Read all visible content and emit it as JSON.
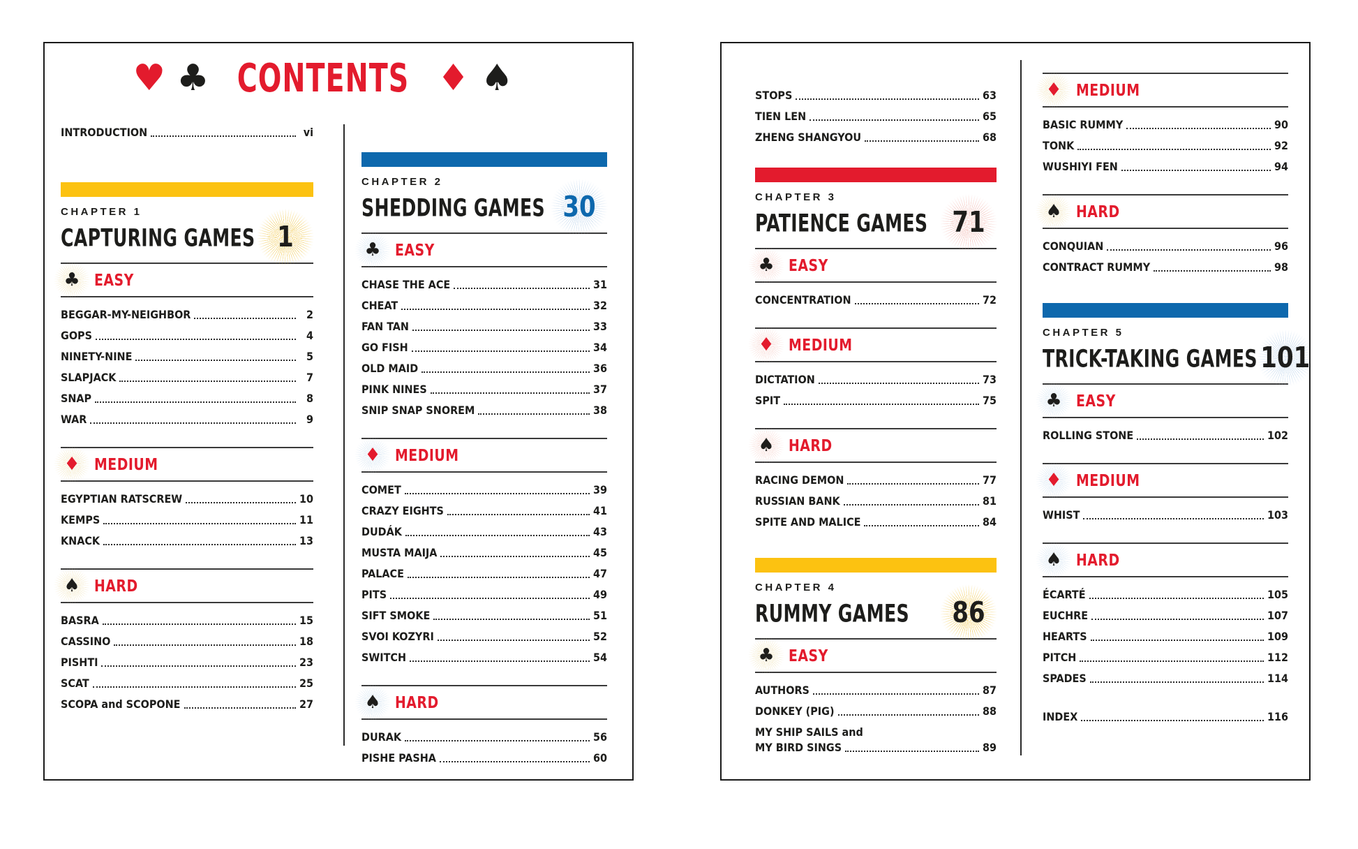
{
  "masthead": {
    "title": "CONTENTS",
    "suits": [
      "heart",
      "club",
      "diamond",
      "spade"
    ]
  },
  "colors": {
    "red": "#e31b2d",
    "blue": "#0d68ad",
    "yellow": "#fcc211",
    "ink": "#1d1d1b",
    "burst_yellow": "#f0c441",
    "burst_blue": "#b9d2ea",
    "burst_red": "#f2b4ad",
    "glow_yellow": "#f0e2b4",
    "glow_blue": "#cfe1f0",
    "glow_red": "#f6cfc8"
  },
  "pages": [
    {
      "name": "left",
      "columns": [
        {
          "blocks": [
            {
              "type": "entry",
              "label": "INTRODUCTION",
              "page": "vi"
            },
            {
              "type": "chapter",
              "kicker": "CHAPTER 1",
              "title": "CAPTURING GAMES",
              "page": "1",
              "theme": "yellow",
              "number_color": "#1d1d1b"
            },
            {
              "type": "section",
              "suit": "club",
              "label": "EASY",
              "theme": "yellow",
              "items": [
                {
                  "label": "BEGGAR-MY-NEIGHBOR",
                  "page": "2"
                },
                {
                  "label": "GOPS",
                  "page": "4"
                },
                {
                  "label": "NINETY-NINE",
                  "page": "5"
                },
                {
                  "label": "SLAPJACK",
                  "page": "7"
                },
                {
                  "label": "SNAP",
                  "page": "8"
                },
                {
                  "label": "WAR",
                  "page": "9"
                }
              ]
            },
            {
              "type": "section",
              "suit": "diamond",
              "label": "MEDIUM",
              "theme": "yellow",
              "items": [
                {
                  "label": "EGYPTIAN RATSCREW",
                  "page": "10"
                },
                {
                  "label": "KEMPS",
                  "page": "11"
                },
                {
                  "label": "KNACK",
                  "page": "13"
                }
              ]
            },
            {
              "type": "section",
              "suit": "spade",
              "label": "HARD",
              "theme": "yellow",
              "items": [
                {
                  "label": "BASRA",
                  "page": "15"
                },
                {
                  "label": "CASSINO",
                  "page": "18"
                },
                {
                  "label": "PISHTI",
                  "page": "23"
                },
                {
                  "label": "SCAT",
                  "page": "25"
                },
                {
                  "label": "SCOPA and SCOPONE",
                  "page": "27"
                }
              ]
            }
          ]
        },
        {
          "blocks": [
            {
              "type": "chapter",
              "kicker": "CHAPTER 2",
              "title": "SHEDDING GAMES",
              "page": "30",
              "theme": "blue",
              "number_color": "#0d68ad"
            },
            {
              "type": "section",
              "suit": "club",
              "label": "EASY",
              "theme": "blue",
              "items": [
                {
                  "label": "CHASE THE ACE",
                  "page": "31"
                },
                {
                  "label": "CHEAT",
                  "page": "32"
                },
                {
                  "label": "FAN TAN",
                  "page": "33"
                },
                {
                  "label": "GO FISH",
                  "page": "34"
                },
                {
                  "label": "OLD MAID",
                  "page": "36"
                },
                {
                  "label": "PINK NINES",
                  "page": "37"
                },
                {
                  "label": "SNIP SNAP SNOREM",
                  "page": "38"
                }
              ]
            },
            {
              "type": "section",
              "suit": "diamond",
              "label": "MEDIUM",
              "theme": "blue",
              "items": [
                {
                  "label": "COMET",
                  "page": "39"
                },
                {
                  "label": "CRAZY EIGHTS",
                  "page": "41"
                },
                {
                  "label": "DUDÁK",
                  "page": "43"
                },
                {
                  "label": "MUSTA MAIJA",
                  "page": "45"
                },
                {
                  "label": "PALACE",
                  "page": "47"
                },
                {
                  "label": "PITS",
                  "page": "49"
                },
                {
                  "label": "SIFT SMOKE",
                  "page": "51"
                },
                {
                  "label": "SVOI KOZYRI",
                  "page": "52"
                },
                {
                  "label": "SWITCH",
                  "page": "54"
                }
              ]
            },
            {
              "type": "section",
              "suit": "spade",
              "label": "HARD",
              "theme": "blue",
              "items": [
                {
                  "label": "DURAK",
                  "page": "56"
                },
                {
                  "label": "PISHE PASHA",
                  "page": "60"
                }
              ]
            }
          ]
        }
      ]
    },
    {
      "name": "right",
      "columns": [
        {
          "blocks": [
            {
              "type": "items",
              "items": [
                {
                  "label": "STOPS",
                  "page": "63"
                },
                {
                  "label": "TIEN LEN",
                  "page": "65"
                },
                {
                  "label": "ZHENG SHANGYOU",
                  "page": "68"
                }
              ]
            },
            {
              "type": "chapter",
              "kicker": "CHAPTER 3",
              "title": "PATIENCE GAMES",
              "page": "71",
              "theme": "red",
              "number_color": "#1d1d1b"
            },
            {
              "type": "section",
              "suit": "club",
              "label": "EASY",
              "theme": "red",
              "items": [
                {
                  "label": "CONCENTRATION",
                  "page": "72"
                }
              ]
            },
            {
              "type": "section",
              "suit": "diamond",
              "label": "MEDIUM",
              "theme": "red",
              "items": [
                {
                  "label": "DICTATION",
                  "page": "73"
                },
                {
                  "label": "SPIT",
                  "page": "75"
                }
              ]
            },
            {
              "type": "section",
              "suit": "spade",
              "label": "HARD",
              "theme": "red",
              "items": [
                {
                  "label": "RACING DEMON",
                  "page": "77"
                },
                {
                  "label": "RUSSIAN BANK",
                  "page": "81"
                },
                {
                  "label": "SPITE AND MALICE",
                  "page": "84"
                }
              ]
            },
            {
              "type": "chapter",
              "kicker": "CHAPTER 4",
              "title": "RUMMY GAMES",
              "page": "86",
              "theme": "yellow",
              "number_color": "#1d1d1b"
            },
            {
              "type": "section",
              "suit": "club",
              "label": "EASY",
              "theme": "yellow",
              "items": [
                {
                  "label": "AUTHORS",
                  "page": "87"
                },
                {
                  "label": "DONKEY (PIG)",
                  "page": "88"
                },
                {
                  "label": "MY SHIP SAILS and",
                  "label2": "MY BIRD SINGS",
                  "page": "89"
                }
              ]
            }
          ]
        },
        {
          "blocks": [
            {
              "type": "section",
              "suit": "diamond",
              "label": "MEDIUM",
              "theme": "yellow",
              "items": [
                {
                  "label": "BASIC RUMMY",
                  "page": "90"
                },
                {
                  "label": "TONK",
                  "page": "92"
                },
                {
                  "label": "WUSHIYI FEN",
                  "page": "94"
                }
              ]
            },
            {
              "type": "section",
              "suit": "spade",
              "label": "HARD",
              "theme": "yellow",
              "items": [
                {
                  "label": "CONQUIAN",
                  "page": "96"
                },
                {
                  "label": "CONTRACT RUMMY",
                  "page": "98"
                }
              ]
            },
            {
              "type": "chapter",
              "kicker": "CHAPTER 5",
              "title": "TRICK-TAKING GAMES",
              "page": "101",
              "theme": "blue",
              "number_color": "#1d1d1b"
            },
            {
              "type": "section",
              "suit": "club",
              "label": "EASY",
              "theme": "blue",
              "items": [
                {
                  "label": "ROLLING STONE",
                  "page": "102"
                }
              ]
            },
            {
              "type": "section",
              "suit": "diamond",
              "label": "MEDIUM",
              "theme": "blue",
              "items": [
                {
                  "label": "WHIST",
                  "page": "103"
                }
              ]
            },
            {
              "type": "section",
              "suit": "spade",
              "label": "HARD",
              "theme": "blue",
              "items": [
                {
                  "label": "ÉCARTÉ",
                  "page": "105"
                },
                {
                  "label": "EUCHRE",
                  "page": "107"
                },
                {
                  "label": "HEARTS",
                  "page": "109"
                },
                {
                  "label": "PITCH",
                  "page": "112"
                },
                {
                  "label": "SPADES",
                  "page": "114"
                }
              ]
            },
            {
              "type": "entry",
              "label": "INDEX",
              "page": "116"
            }
          ]
        }
      ]
    }
  ]
}
